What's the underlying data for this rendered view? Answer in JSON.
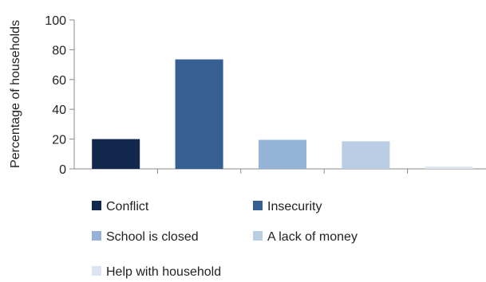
{
  "chart_data": {
    "type": "bar",
    "title": "",
    "xlabel": "",
    "ylabel": "Percentage of households",
    "ylim": [
      0,
      100
    ],
    "yticks": [
      0,
      20,
      40,
      60,
      80,
      100
    ],
    "grid": false,
    "legend_position": "bottom",
    "categories": [
      "Conflict",
      "Insecurity",
      "School is closed",
      "A lack of money",
      "Help with household"
    ],
    "values": [
      20,
      73.5,
      19.5,
      18.5,
      1.5
    ],
    "colors": [
      "#12284c",
      "#366092",
      "#95b3d7",
      "#b9cde5",
      "#dce6f2"
    ]
  }
}
